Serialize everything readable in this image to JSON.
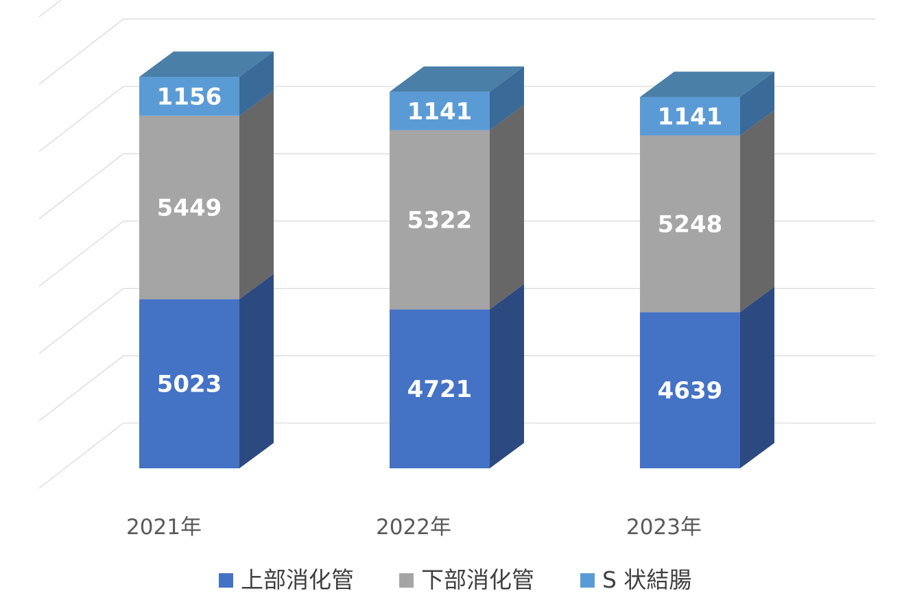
{
  "chart_data": {
    "type": "bar",
    "stacked": true,
    "three_d": true,
    "categories": [
      "2021年",
      "2022年",
      "2023年"
    ],
    "series": [
      {
        "name": "上部消化管",
        "values": [
          5023,
          4721,
          4639
        ],
        "color": "#4472C4",
        "side_color": "#2C4A80",
        "top_color": "#3B67AE"
      },
      {
        "name": "下部消化管",
        "values": [
          5449,
          5322,
          5248
        ],
        "color": "#A5A5A5",
        "side_color": "#676767",
        "top_color": "#8C8C8C"
      },
      {
        "name": "S 状結腸",
        "values": [
          1156,
          1141,
          1141
        ],
        "color": "#5B9BD5",
        "side_color": "#3A6A98",
        "top_color": "#4A7FA8"
      }
    ],
    "ylim": [
      0,
      14000
    ],
    "grid": true,
    "legend_position": "bottom"
  }
}
